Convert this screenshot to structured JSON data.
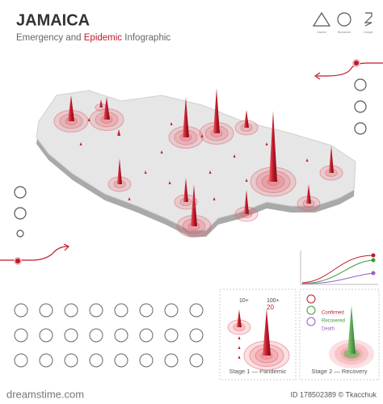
{
  "header": {
    "title": "JAMAICA",
    "subtitle": [
      "Emergency and ",
      "Epidemic",
      " Infographic"
    ]
  },
  "top_icons": [
    "Caution",
    "Biohazard",
    "Danger"
  ],
  "stage1": {
    "small": "10+",
    "big": "100+",
    "big_count": "20",
    "caption": "Stage 1 — Pandemic"
  },
  "stage2": {
    "legend": [
      "Confirmed",
      "Recovered",
      "Death"
    ],
    "caption": "Stage 2 — Recovery"
  },
  "watermark": {
    "site": "dreamstime.com",
    "id": "ID 178502389 © Tkacchuk"
  }
}
